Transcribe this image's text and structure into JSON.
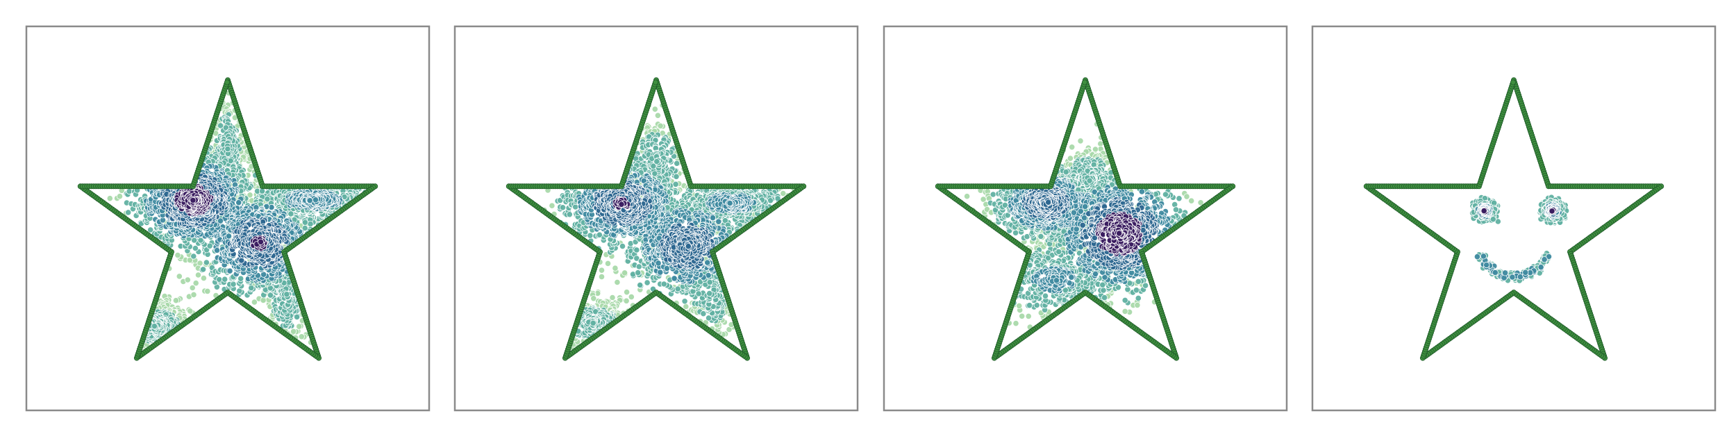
{
  "figure": {
    "panel_count": 4,
    "palette": {
      "dark": "#3a1c60",
      "mid_dark": "#2d6790",
      "mid": "#3f8aa0",
      "mid_light": "#61b1a2",
      "light": "#a9d9aa",
      "border_points": "#3f8f3f",
      "border_points_dark": "#1f5a2a",
      "frame": "#8a8a8a"
    }
  },
  "chart_data": [
    {
      "type": "scatter",
      "title": "",
      "xlabel": "",
      "ylabel": "",
      "xlim": [
        -1.3,
        1.3
      ],
      "ylim": [
        -1.15,
        1.35
      ],
      "grid": false,
      "legend": "none",
      "series": [
        {
          "role": "boundary",
          "shape": "star",
          "vertices": [
            [
              0.0,
              1.0
            ],
            [
              0.2245,
              0.309
            ],
            [
              0.9511,
              0.309
            ],
            [
              0.3633,
              -0.118
            ],
            [
              0.5878,
              -0.809
            ],
            [
              0.0,
              -0.382
            ],
            [
              -0.5878,
              -0.809
            ],
            [
              -0.3633,
              -0.118
            ],
            [
              -0.9511,
              0.309
            ],
            [
              -0.2245,
              0.309
            ]
          ]
        },
        {
          "role": "samples",
          "clusters": [
            {
              "center": [
                -0.22,
                0.22
              ],
              "spread": [
                0.2,
                0.16
              ],
              "count": 950
            },
            {
              "center": [
                0.2,
                -0.06
              ],
              "spread": [
                0.2,
                0.17
              ],
              "count": 850
            },
            {
              "center": [
                0.55,
                0.22
              ],
              "spread": [
                0.2,
                0.07
              ],
              "count": 500
            },
            {
              "center": [
                -0.48,
                -0.6
              ],
              "spread": [
                0.12,
                0.08
              ],
              "count": 260
            },
            {
              "center": [
                0.0,
                0.55
              ],
              "spread": [
                0.06,
                0.18
              ],
              "count": 230
            },
            {
              "center": [
                0.38,
                -0.4
              ],
              "spread": [
                0.09,
                0.18
              ],
              "count": 220
            }
          ]
        }
      ]
    },
    {
      "type": "scatter",
      "title": "",
      "xlabel": "",
      "ylabel": "",
      "xlim": [
        -1.3,
        1.3
      ],
      "ylim": [
        -1.15,
        1.35
      ],
      "grid": false,
      "legend": "none",
      "series": [
        {
          "role": "boundary",
          "shape": "star",
          "vertices": [
            [
              0.0,
              1.0
            ],
            [
              0.2245,
              0.309
            ],
            [
              0.9511,
              0.309
            ],
            [
              0.3633,
              -0.118
            ],
            [
              0.5878,
              -0.809
            ],
            [
              0.0,
              -0.382
            ],
            [
              -0.5878,
              -0.809
            ],
            [
              -0.3633,
              -0.118
            ],
            [
              -0.9511,
              0.309
            ],
            [
              -0.2245,
              0.309
            ]
          ]
        },
        {
          "role": "samples",
          "clusters": [
            {
              "center": [
                -0.22,
                0.2
              ],
              "spread": [
                0.2,
                0.15
              ],
              "count": 850
            },
            {
              "center": [
                0.2,
                -0.08
              ],
              "spread": [
                0.2,
                0.17
              ],
              "count": 800
            },
            {
              "center": [
                0.48,
                0.2
              ],
              "spread": [
                0.2,
                0.08
              ],
              "count": 450
            },
            {
              "center": [
                -0.42,
                -0.58
              ],
              "spread": [
                0.14,
                0.08
              ],
              "count": 230
            },
            {
              "center": [
                0.0,
                0.45
              ],
              "spread": [
                0.1,
                0.15
              ],
              "count": 250
            },
            {
              "center": [
                0.35,
                -0.38
              ],
              "spread": [
                0.1,
                0.18
              ],
              "count": 200
            }
          ]
        }
      ]
    },
    {
      "type": "scatter",
      "title": "",
      "xlabel": "",
      "ylabel": "",
      "xlim": [
        -1.3,
        1.3
      ],
      "ylim": [
        -1.15,
        1.35
      ],
      "grid": false,
      "legend": "none",
      "series": [
        {
          "role": "boundary",
          "shape": "star",
          "vertices": [
            [
              0.0,
              1.0
            ],
            [
              0.2245,
              0.309
            ],
            [
              0.9511,
              0.309
            ],
            [
              0.3633,
              -0.118
            ],
            [
              0.5878,
              -0.809
            ],
            [
              0.0,
              -0.382
            ],
            [
              -0.5878,
              -0.809
            ],
            [
              -0.3633,
              -0.118
            ],
            [
              -0.9511,
              0.309
            ],
            [
              -0.2245,
              0.309
            ]
          ]
        },
        {
          "role": "samples",
          "clusters": [
            {
              "center": [
                -0.25,
                0.2
              ],
              "spread": [
                0.17,
                0.12
              ],
              "count": 800
            },
            {
              "center": [
                0.22,
                0.0
              ],
              "spread": [
                0.22,
                0.2
              ],
              "count": 1000
            },
            {
              "center": [
                -0.2,
                -0.3
              ],
              "spread": [
                0.22,
                0.12
              ],
              "count": 420
            },
            {
              "center": [
                0.02,
                0.35
              ],
              "spread": [
                0.1,
                0.1
              ],
              "count": 300
            }
          ]
        }
      ]
    },
    {
      "type": "scatter",
      "title": "",
      "xlabel": "",
      "ylabel": "",
      "xlim": [
        -1.3,
        1.3
      ],
      "ylim": [
        -1.15,
        1.35
      ],
      "grid": false,
      "legend": "none",
      "series": [
        {
          "role": "boundary",
          "shape": "star",
          "vertices": [
            [
              0.0,
              1.0
            ],
            [
              0.2245,
              0.309
            ],
            [
              0.9511,
              0.309
            ],
            [
              0.3633,
              -0.118
            ],
            [
              0.5878,
              -0.809
            ],
            [
              0.0,
              -0.382
            ],
            [
              -0.5878,
              -0.809
            ],
            [
              -0.3633,
              -0.118
            ],
            [
              -0.9511,
              0.309
            ],
            [
              -0.2245,
              0.309
            ]
          ]
        },
        {
          "role": "samples",
          "shape": "smiley",
          "features": [
            {
              "name": "left-eye",
              "center": [
                -0.19,
                0.15
              ],
              "radius": 0.07,
              "core_count": 120,
              "ring_count": 90
            },
            {
              "name": "right-eye",
              "center": [
                0.25,
                0.15
              ],
              "radius": 0.07,
              "core_count": 120,
              "ring_count": 90
            },
            {
              "name": "smile",
              "center": [
                0.0,
                -0.05
              ],
              "arc_from_deg": 200,
              "arc_to_deg": 340,
              "radius": 0.23,
              "count": 230
            }
          ]
        }
      ]
    }
  ]
}
